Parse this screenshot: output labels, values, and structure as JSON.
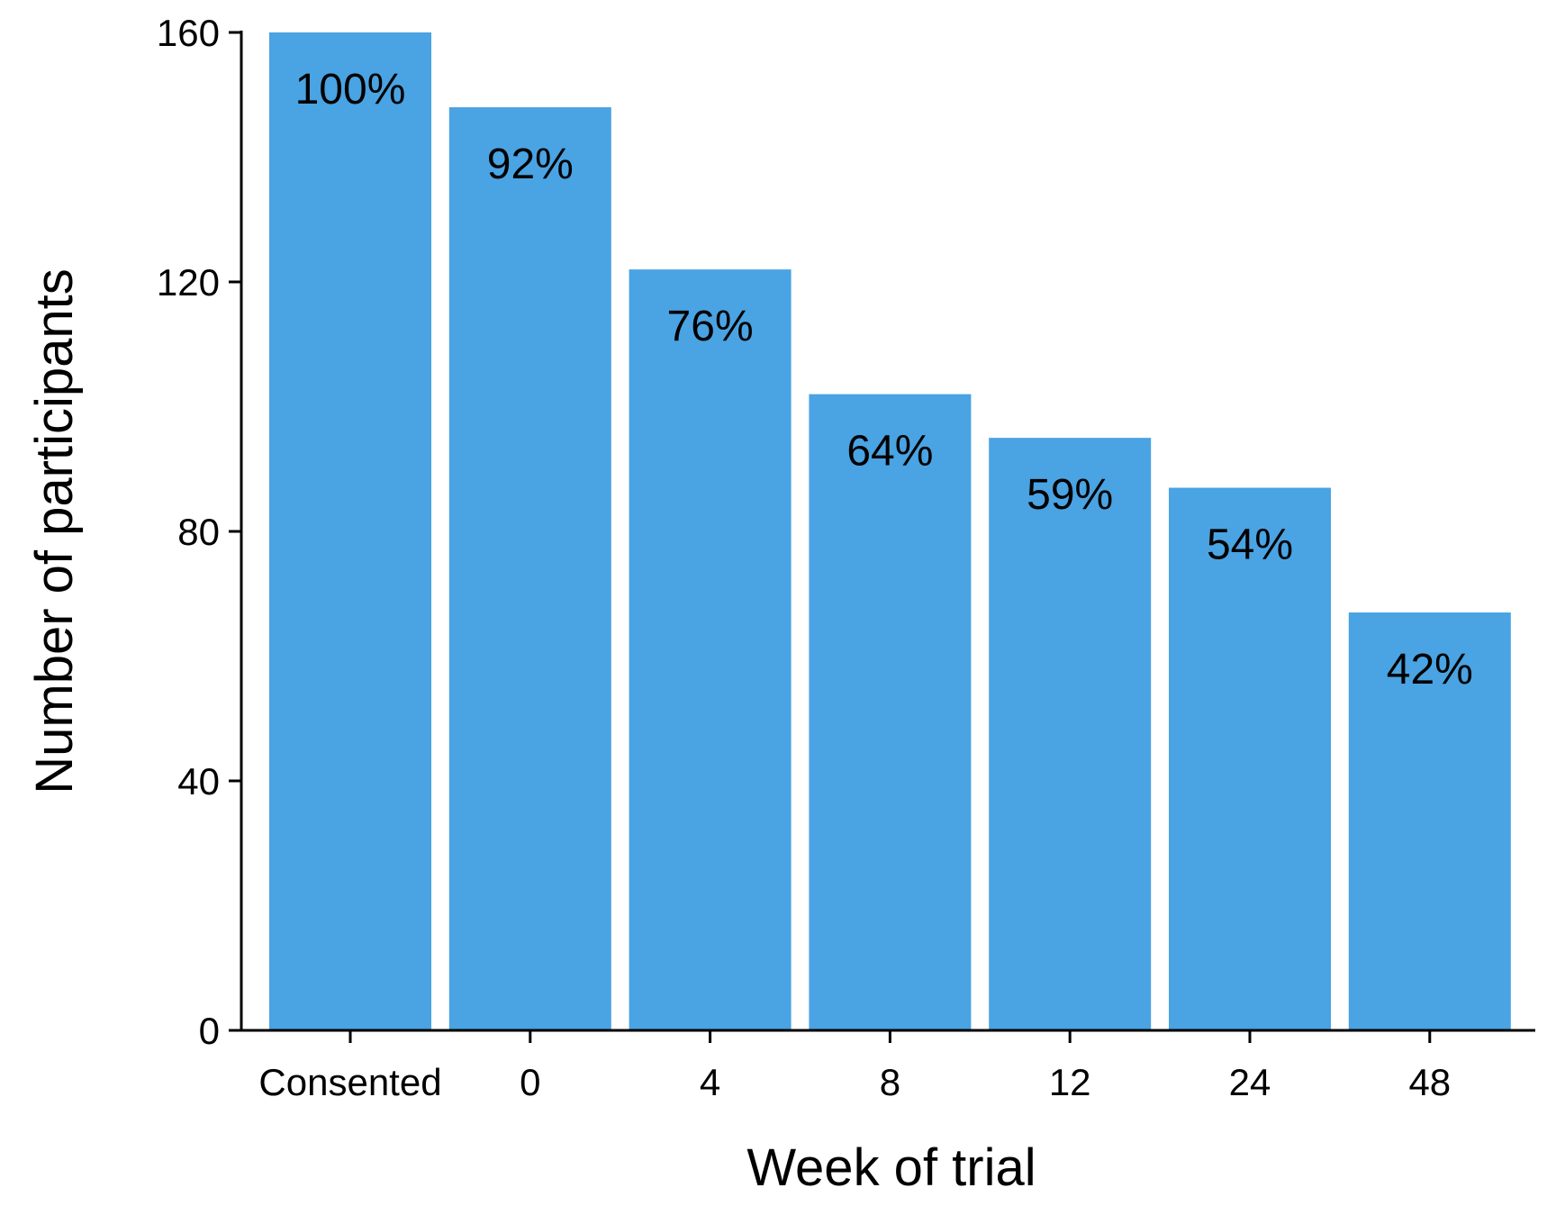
{
  "chart_data": {
    "type": "bar",
    "categories": [
      "Consented",
      "0",
      "4",
      "8",
      "12",
      "24",
      "48"
    ],
    "values": [
      160,
      148,
      122,
      102,
      95,
      87,
      67
    ],
    "data_labels": [
      "100%",
      "92%",
      "76%",
      "64%",
      "59%",
      "54%",
      "42%"
    ],
    "title": "",
    "xlabel": "Week of trial",
    "ylabel": "Number of participants",
    "ylim": [
      0,
      160
    ],
    "yticks": [
      0,
      40,
      80,
      120,
      160
    ],
    "grid": false,
    "legend": "none",
    "bar_color": "#4AA3E2",
    "axis_color": "#000000"
  }
}
